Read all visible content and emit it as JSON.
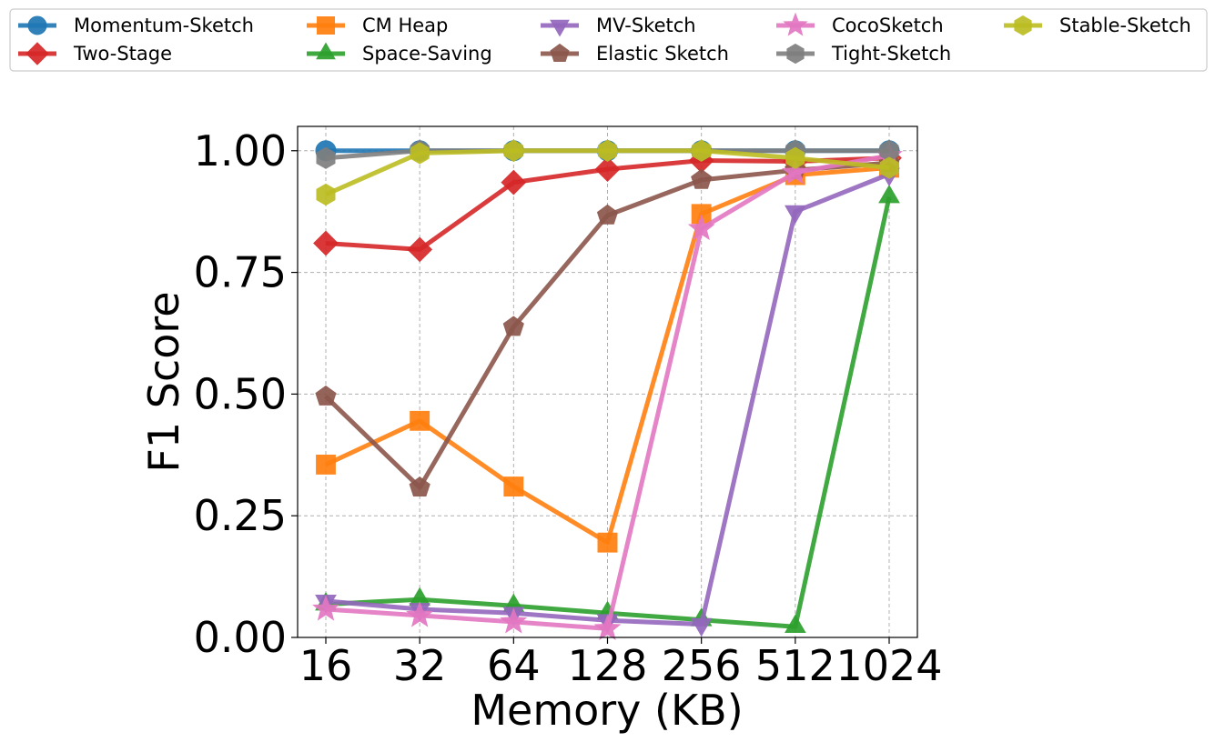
{
  "chart_data": {
    "type": "line",
    "title": "",
    "xlabel": "Memory (KB)",
    "ylabel": "F1 Score",
    "x": [
      "16",
      "32",
      "64",
      "128",
      "256",
      "512",
      "1024"
    ],
    "yticks": [
      "0.00",
      "0.25",
      "0.50",
      "0.75",
      "1.00"
    ],
    "ylim": [
      0,
      1.05
    ],
    "grid": true,
    "legend_position": "top",
    "series": [
      {
        "name": "Momentum-Sketch",
        "color": "#1f77b4",
        "marker": "circle",
        "values": [
          1.0,
          1.0,
          1.0,
          1.0,
          1.0,
          1.0,
          1.0
        ]
      },
      {
        "name": "Two-Stage",
        "color": "#d62728",
        "marker": "diamond",
        "values": [
          0.81,
          0.797,
          0.935,
          0.962,
          0.98,
          0.978,
          0.985
        ]
      },
      {
        "name": "CM Heap",
        "color": "#ff7f0e",
        "marker": "square",
        "values": [
          0.355,
          0.445,
          0.31,
          0.195,
          0.87,
          0.95,
          0.965
        ]
      },
      {
        "name": "Space-Saving",
        "color": "#2ca02c",
        "marker": "triangle-up",
        "values": [
          0.068,
          0.078,
          0.065,
          0.05,
          0.036,
          0.022,
          0.905
        ]
      },
      {
        "name": "MV-Sketch",
        "color": "#9467bd",
        "marker": "triangle-down",
        "values": [
          0.075,
          0.058,
          0.05,
          0.035,
          0.027,
          0.875,
          0.952
        ]
      },
      {
        "name": "Elastic Sketch",
        "color": "#8c564b",
        "marker": "pentagon",
        "values": [
          0.495,
          0.308,
          0.638,
          0.867,
          0.94,
          0.96,
          0.975
        ]
      },
      {
        "name": "CocoSketch",
        "color": "#e377c2",
        "marker": "star",
        "values": [
          0.058,
          0.045,
          0.032,
          0.018,
          0.84,
          0.955,
          0.99
        ]
      },
      {
        "name": "Tight-Sketch",
        "color": "#7f7f7f",
        "marker": "hexagon",
        "values": [
          0.985,
          1.0,
          1.0,
          1.0,
          1.0,
          1.0,
          1.0
        ]
      },
      {
        "name": "Stable-Sketch",
        "color": "#bcbd22",
        "marker": "hexagon",
        "values": [
          0.91,
          0.995,
          1.0,
          1.0,
          1.0,
          0.985,
          0.965
        ]
      }
    ]
  }
}
